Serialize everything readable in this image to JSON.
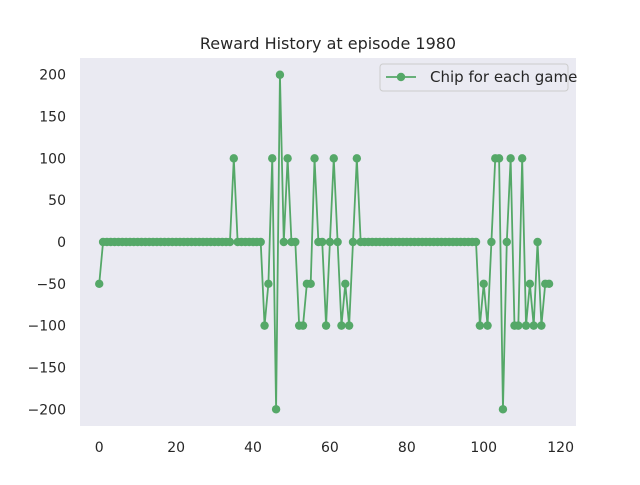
{
  "chart_data": {
    "type": "line",
    "title": "Reward History at episode 1980",
    "xlabel": "",
    "ylabel": "",
    "xlim": [
      -5,
      124
    ],
    "ylim": [
      -220,
      220
    ],
    "x_ticks": [
      0,
      20,
      40,
      60,
      80,
      100,
      120
    ],
    "y_ticks": [
      200,
      150,
      100,
      50,
      0,
      -50,
      -100,
      -150,
      -200
    ],
    "x_tick_labels": [
      "0",
      "20",
      "40",
      "60",
      "80",
      "100",
      "120"
    ],
    "y_tick_labels": [
      "200",
      "150",
      "100",
      "50",
      "0",
      "−50",
      "−100",
      "−150",
      "−200"
    ],
    "grid": false,
    "legend_position": "top-right",
    "background_color": "#eaeaf2",
    "series": [
      {
        "name": "Chip for each game",
        "color": "#55a868",
        "marker": "circle",
        "x": [
          0,
          1,
          2,
          3,
          4,
          5,
          6,
          7,
          8,
          9,
          10,
          11,
          12,
          13,
          14,
          15,
          16,
          17,
          18,
          19,
          20,
          21,
          22,
          23,
          24,
          25,
          26,
          27,
          28,
          29,
          30,
          31,
          32,
          33,
          34,
          35,
          36,
          37,
          38,
          39,
          40,
          41,
          42,
          43,
          44,
          45,
          46,
          47,
          48,
          49,
          50,
          51,
          52,
          53,
          54,
          55,
          56,
          57,
          58,
          59,
          60,
          61,
          62,
          63,
          64,
          65,
          66,
          67,
          68,
          69,
          70,
          71,
          72,
          73,
          74,
          75,
          76,
          77,
          78,
          79,
          80,
          81,
          82,
          83,
          84,
          85,
          86,
          87,
          88,
          89,
          90,
          91,
          92,
          93,
          94,
          95,
          96,
          97,
          98,
          99,
          100,
          101,
          102,
          103,
          104,
          105,
          106,
          107,
          108,
          109,
          110,
          111,
          112,
          113,
          114,
          115,
          116,
          117
        ],
        "values": [
          -50,
          0,
          0,
          0,
          0,
          0,
          0,
          0,
          0,
          0,
          0,
          0,
          0,
          0,
          0,
          0,
          0,
          0,
          0,
          0,
          0,
          0,
          0,
          0,
          0,
          0,
          0,
          0,
          0,
          0,
          0,
          0,
          0,
          0,
          0,
          100,
          0,
          0,
          0,
          0,
          0,
          0,
          0,
          -100,
          -50,
          100,
          -200,
          200,
          0,
          100,
          0,
          0,
          -100,
          -100,
          -50,
          -50,
          100,
          0,
          0,
          -100,
          0,
          100,
          0,
          -100,
          -50,
          -100,
          0,
          100,
          0,
          0,
          0,
          0,
          0,
          0,
          0,
          0,
          0,
          0,
          0,
          0,
          0,
          0,
          0,
          0,
          0,
          0,
          0,
          0,
          0,
          0,
          0,
          0,
          0,
          0,
          0,
          0,
          0,
          0,
          0,
          -100,
          -50,
          -100,
          0,
          100,
          100,
          -200,
          0,
          100,
          -100,
          -100,
          100,
          -100,
          -50,
          -100,
          0,
          -100,
          -50,
          -50
        ]
      }
    ]
  }
}
